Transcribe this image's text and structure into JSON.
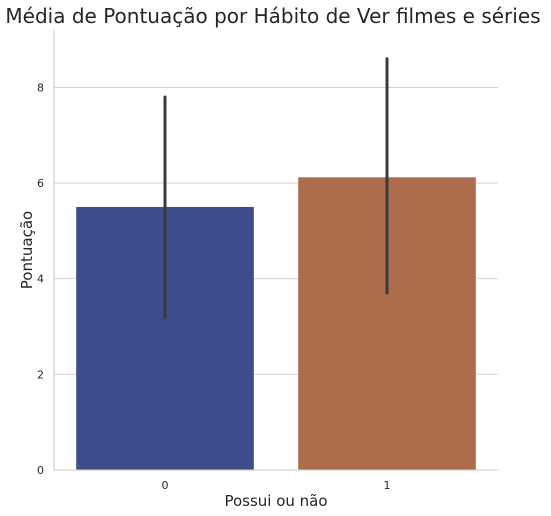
{
  "chart_data": {
    "type": "bar",
    "title": "Média de Pontuação por Hábito de Ver filmes e séries",
    "xlabel": "Possui ou não",
    "ylabel": "Pontuação",
    "categories": [
      "0",
      "1"
    ],
    "values": [
      5.5,
      6.12
    ],
    "error_bars": [
      [
        3.2,
        7.8
      ],
      [
        3.7,
        8.6
      ]
    ],
    "ylim": [
      0,
      9.2
    ],
    "yticks": [
      "0",
      "2",
      "4",
      "6",
      "8"
    ],
    "colors": [
      "#3e4d8a",
      "#ad6c4b"
    ],
    "error_bar_color": "#3a3a3a",
    "grid": true
  }
}
